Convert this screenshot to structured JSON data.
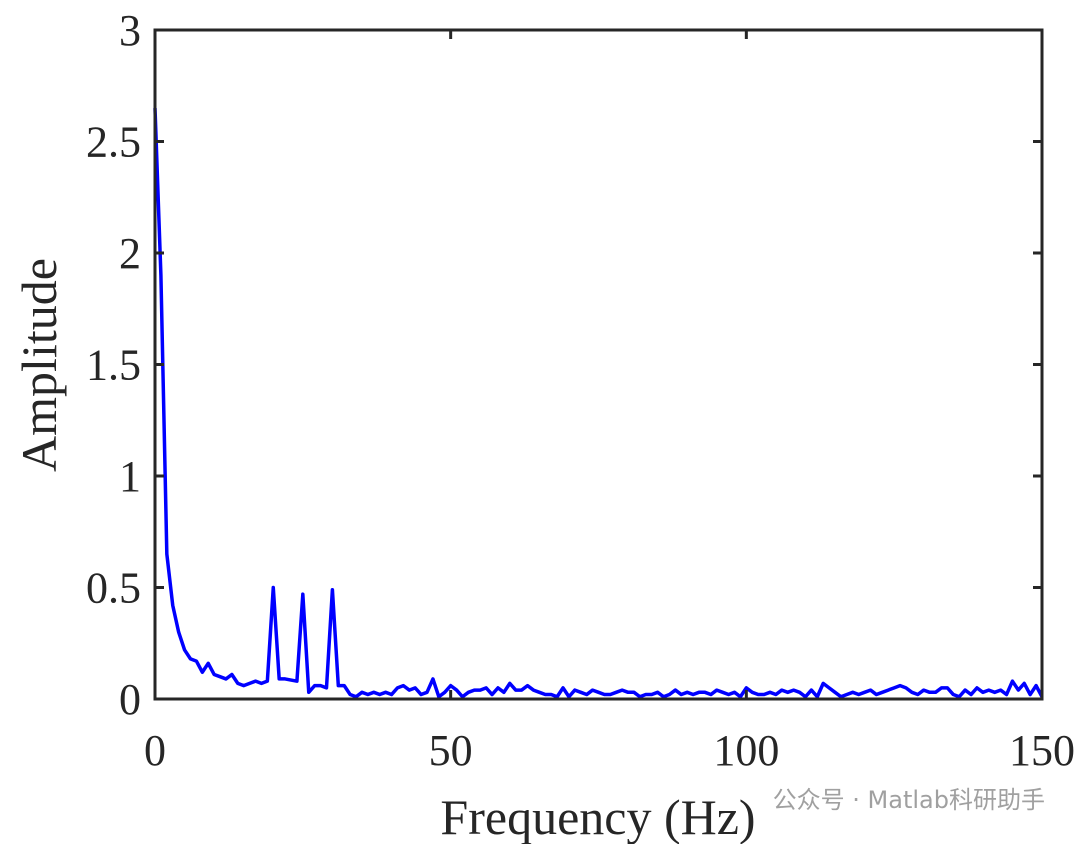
{
  "chart_data": {
    "type": "line",
    "xlabel": "Frequency (Hz)",
    "ylabel": "Amplitude",
    "watermark": "公众号 · Matlab科研助手",
    "xlim": [
      0,
      150
    ],
    "ylim": [
      0,
      3
    ],
    "xticks": [
      0,
      50,
      100,
      150
    ],
    "yticks": [
      0,
      0.5,
      1,
      1.5,
      2,
      2.5,
      3
    ],
    "x": [
      0,
      1,
      2,
      3,
      4,
      5,
      6,
      7,
      8,
      9,
      10,
      11,
      12,
      13,
      14,
      15,
      16,
      17,
      18,
      19,
      20,
      21,
      22,
      23,
      24,
      25,
      26,
      27,
      28,
      29,
      30,
      31,
      32,
      33,
      34,
      35,
      36,
      37,
      38,
      39,
      40,
      41,
      42,
      43,
      44,
      45,
      46,
      47,
      48,
      49,
      50,
      51,
      52,
      53,
      54,
      55,
      56,
      57,
      58,
      59,
      60,
      61,
      62,
      63,
      64,
      65,
      66,
      67,
      68,
      69,
      70,
      71,
      72,
      73,
      74,
      75,
      76,
      77,
      78,
      79,
      80,
      81,
      82,
      83,
      84,
      85,
      86,
      87,
      88,
      89,
      90,
      91,
      92,
      93,
      94,
      95,
      96,
      97,
      98,
      99,
      100,
      101,
      102,
      103,
      104,
      105,
      106,
      107,
      108,
      109,
      110,
      111,
      112,
      113,
      114,
      115,
      116,
      117,
      118,
      119,
      120,
      121,
      122,
      123,
      124,
      125,
      126,
      127,
      128,
      129,
      130,
      131,
      132,
      133,
      134,
      135,
      136,
      137,
      138,
      139,
      140,
      141,
      142,
      143,
      144,
      145,
      146,
      147,
      148,
      149,
      150
    ],
    "series": [
      {
        "color": "#0000ff",
        "values": [
          2.65,
          1.9,
          0.65,
          0.42,
          0.3,
          0.22,
          0.18,
          0.17,
          0.12,
          0.16,
          0.11,
          0.1,
          0.09,
          0.11,
          0.07,
          0.06,
          0.07,
          0.08,
          0.07,
          0.08,
          0.5,
          0.09,
          0.09,
          0.085,
          0.08,
          0.47,
          0.03,
          0.06,
          0.06,
          0.05,
          0.49,
          0.06,
          0.06,
          0.02,
          0.01,
          0.03,
          0.02,
          0.03,
          0.02,
          0.03,
          0.02,
          0.05,
          0.06,
          0.04,
          0.05,
          0.02,
          0.03,
          0.09,
          0.01,
          0.03,
          0.06,
          0.04,
          0.01,
          0.03,
          0.04,
          0.04,
          0.05,
          0.02,
          0.05,
          0.03,
          0.07,
          0.04,
          0.04,
          0.06,
          0.04,
          0.03,
          0.02,
          0.02,
          0.01,
          0.05,
          0.01,
          0.04,
          0.03,
          0.02,
          0.04,
          0.03,
          0.02,
          0.02,
          0.03,
          0.04,
          0.03,
          0.03,
          0.01,
          0.02,
          0.02,
          0.03,
          0.01,
          0.02,
          0.04,
          0.02,
          0.03,
          0.02,
          0.03,
          0.03,
          0.02,
          0.04,
          0.03,
          0.02,
          0.03,
          0.01,
          0.05,
          0.03,
          0.02,
          0.02,
          0.03,
          0.02,
          0.04,
          0.03,
          0.04,
          0.03,
          0.01,
          0.04,
          0.01,
          0.07,
          0.05,
          0.03,
          0.01,
          0.02,
          0.03,
          0.02,
          0.03,
          0.04,
          0.02,
          0.03,
          0.04,
          0.05,
          0.06,
          0.05,
          0.03,
          0.02,
          0.04,
          0.03,
          0.03,
          0.05,
          0.05,
          0.02,
          0.01,
          0.04,
          0.02,
          0.05,
          0.03,
          0.04,
          0.03,
          0.04,
          0.02,
          0.08,
          0.04,
          0.07,
          0.02,
          0.06,
          0.01
        ]
      }
    ]
  }
}
